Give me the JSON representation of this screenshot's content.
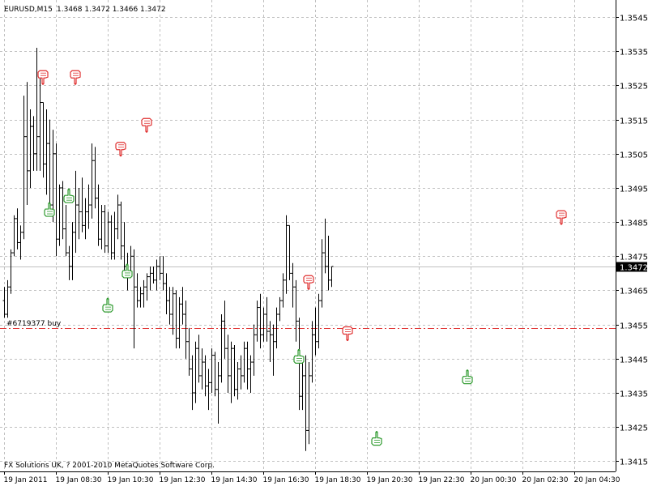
{
  "window": {
    "symbol_timeframe": "EURUSD,M15",
    "ohlc": "1.3468 1.3472 1.3466 1.3472",
    "copyright": "FX Solutions UK, ? 2001-2010 MetaQuotes Software Corp.",
    "order_label": "#6719377 buy"
  },
  "colors": {
    "background": "#ffffff",
    "grid": "#c0c0c0",
    "bars": "#000000",
    "up_arrow": "#2e9a2e",
    "down_arrow": "#e03030",
    "order_line": "#e03030",
    "current_price_line": "#c0c0c0",
    "price_tag_bg": "#000000",
    "price_tag_text": "#ffffff"
  },
  "chart_data": {
    "type": "ohlc",
    "timeframe": "M15",
    "ylim": [
      1.3412,
      1.355
    ],
    "y_ticks": [
      "1.3545",
      "1.3535",
      "1.3525",
      "1.3515",
      "1.3505",
      "1.3495",
      "1.3485",
      "1.3475",
      "1.3465",
      "1.3455",
      "1.3445",
      "1.3435",
      "1.3425",
      "1.3415"
    ],
    "x_ticks": [
      "19 Jan 2011",
      "19 Jan 08:30",
      "19 Jan 10:30",
      "19 Jan 12:30",
      "19 Jan 14:30",
      "19 Jan 16:30",
      "19 Jan 18:30",
      "19 Jan 20:30",
      "19 Jan 22:30",
      "20 Jan 00:30",
      "20 Jan 02:30",
      "20 Jan 04:30"
    ],
    "current_price": "1.3472",
    "order_line": {
      "label": "#6719377 buy",
      "price": 1.3454
    },
    "bars": [
      [
        1.3462,
        1.3466,
        1.3457,
        1.3458
      ],
      [
        1.3458,
        1.3468,
        1.3457,
        1.3466
      ],
      [
        1.3466,
        1.3477,
        1.3464,
        1.3476
      ],
      [
        1.3476,
        1.3487,
        1.3475,
        1.3486
      ],
      [
        1.3486,
        1.3489,
        1.3477,
        1.3479
      ],
      [
        1.3479,
        1.3484,
        1.3474,
        1.3482
      ],
      [
        1.3482,
        1.3522,
        1.348,
        1.351
      ],
      [
        1.351,
        1.3526,
        1.349,
        1.35
      ],
      [
        1.35,
        1.3518,
        1.3495,
        1.3513
      ],
      [
        1.3513,
        1.3516,
        1.35,
        1.3505
      ],
      [
        1.3505,
        1.3536,
        1.35,
        1.351
      ],
      [
        1.351,
        1.3527,
        1.35,
        1.352
      ],
      [
        1.352,
        1.352,
        1.3498,
        1.3502
      ],
      [
        1.3502,
        1.3518,
        1.3493,
        1.3508
      ],
      [
        1.3508,
        1.3515,
        1.3487,
        1.349
      ],
      [
        1.349,
        1.3512,
        1.3485,
        1.3505
      ],
      [
        1.3505,
        1.3508,
        1.3475,
        1.348
      ],
      [
        1.348,
        1.3496,
        1.3478,
        1.3495
      ],
      [
        1.3495,
        1.3497,
        1.348,
        1.3483
      ],
      [
        1.3483,
        1.349,
        1.3475,
        1.3476
      ],
      [
        1.3476,
        1.3478,
        1.3468,
        1.3472
      ],
      [
        1.3472,
        1.3485,
        1.3468,
        1.3482
      ],
      [
        1.3482,
        1.35,
        1.3476,
        1.349
      ],
      [
        1.349,
        1.3495,
        1.348,
        1.3488
      ],
      [
        1.3488,
        1.3498,
        1.3482,
        1.3484
      ],
      [
        1.3484,
        1.3492,
        1.348,
        1.3488
      ],
      [
        1.3488,
        1.3496,
        1.3483,
        1.349
      ],
      [
        1.349,
        1.3508,
        1.3486,
        1.3503
      ],
      [
        1.3503,
        1.3507,
        1.3489,
        1.3492
      ],
      [
        1.3492,
        1.3496,
        1.3478,
        1.348
      ],
      [
        1.348,
        1.349,
        1.3477,
        1.3488
      ],
      [
        1.3488,
        1.349,
        1.3476,
        1.3478
      ],
      [
        1.3478,
        1.3488,
        1.3476,
        1.3485
      ],
      [
        1.3485,
        1.3487,
        1.3474,
        1.3476
      ],
      [
        1.3476,
        1.3488,
        1.3474,
        1.3483
      ],
      [
        1.3483,
        1.3493,
        1.348,
        1.349
      ],
      [
        1.349,
        1.3491,
        1.3474,
        1.3478
      ],
      [
        1.3478,
        1.3485,
        1.347,
        1.3472
      ],
      [
        1.3472,
        1.3476,
        1.3465,
        1.347
      ],
      [
        1.347,
        1.3478,
        1.3469,
        1.3475
      ],
      [
        1.3475,
        1.3477,
        1.3448,
        1.3466
      ],
      [
        1.3466,
        1.347,
        1.346,
        1.3462
      ],
      [
        1.3462,
        1.3466,
        1.346,
        1.3464
      ],
      [
        1.3464,
        1.3468,
        1.346,
        1.3466
      ],
      [
        1.3466,
        1.347,
        1.3462,
        1.3469
      ],
      [
        1.3469,
        1.3472,
        1.3465,
        1.347
      ],
      [
        1.347,
        1.3472,
        1.3467,
        1.3468
      ],
      [
        1.3468,
        1.3474,
        1.3465,
        1.3472
      ],
      [
        1.3472,
        1.3475,
        1.3468,
        1.347
      ],
      [
        1.347,
        1.3475,
        1.3465,
        1.3467
      ],
      [
        1.3467,
        1.347,
        1.3458,
        1.3462
      ],
      [
        1.3462,
        1.3466,
        1.3455,
        1.3458
      ],
      [
        1.3458,
        1.3466,
        1.3452,
        1.3464
      ],
      [
        1.3464,
        1.3465,
        1.3448,
        1.3451
      ],
      [
        1.3451,
        1.3463,
        1.3448,
        1.3461
      ],
      [
        1.3461,
        1.3466,
        1.3455,
        1.3458
      ],
      [
        1.3458,
        1.3462,
        1.3445,
        1.345
      ],
      [
        1.345,
        1.3454,
        1.344,
        1.3442
      ],
      [
        1.3442,
        1.3446,
        1.343,
        1.3435
      ],
      [
        1.3435,
        1.345,
        1.3432,
        1.3448
      ],
      [
        1.3448,
        1.3452,
        1.3438,
        1.344
      ],
      [
        1.344,
        1.3448,
        1.3436,
        1.3444
      ],
      [
        1.3444,
        1.3446,
        1.3434,
        1.3437
      ],
      [
        1.3437,
        1.3442,
        1.343,
        1.3438
      ],
      [
        1.3438,
        1.3448,
        1.3435,
        1.3446
      ],
      [
        1.3446,
        1.3447,
        1.3434,
        1.3436
      ],
      [
        1.3436,
        1.3444,
        1.3426,
        1.344
      ],
      [
        1.344,
        1.3458,
        1.3438,
        1.3456
      ],
      [
        1.3456,
        1.3462,
        1.3445,
        1.3448
      ],
      [
        1.3448,
        1.3452,
        1.3435,
        1.344
      ],
      [
        1.344,
        1.345,
        1.3432,
        1.3448
      ],
      [
        1.3448,
        1.3449,
        1.3434,
        1.3436
      ],
      [
        1.3436,
        1.3444,
        1.3433,
        1.3442
      ],
      [
        1.3442,
        1.3446,
        1.3436,
        1.344
      ],
      [
        1.344,
        1.345,
        1.3438,
        1.3448
      ],
      [
        1.3448,
        1.345,
        1.3436,
        1.3442
      ],
      [
        1.3442,
        1.3446,
        1.3435,
        1.3444
      ],
      [
        1.3444,
        1.3455,
        1.344,
        1.3452
      ],
      [
        1.3452,
        1.3462,
        1.345,
        1.346
      ],
      [
        1.346,
        1.3464,
        1.3448,
        1.3452
      ],
      [
        1.3452,
        1.346,
        1.345,
        1.3458
      ],
      [
        1.3458,
        1.3463,
        1.345,
        1.3453
      ],
      [
        1.3453,
        1.3456,
        1.3444,
        1.3452
      ],
      [
        1.3452,
        1.3455,
        1.344,
        1.345
      ],
      [
        1.345,
        1.346,
        1.3448,
        1.3458
      ],
      [
        1.3458,
        1.3463,
        1.3456,
        1.3462
      ],
      [
        1.3462,
        1.347,
        1.346,
        1.3468
      ],
      [
        1.3468,
        1.3487,
        1.3464,
        1.3484
      ],
      [
        1.3484,
        1.3484,
        1.3468,
        1.347
      ],
      [
        1.347,
        1.3473,
        1.346,
        1.3466
      ],
      [
        1.3466,
        1.3468,
        1.345,
        1.3456
      ],
      [
        1.3456,
        1.3457,
        1.343,
        1.3434
      ],
      [
        1.3434,
        1.3444,
        1.343,
        1.344
      ],
      [
        1.344,
        1.3446,
        1.3418,
        1.3424
      ],
      [
        1.3424,
        1.3444,
        1.342,
        1.344
      ],
      [
        1.344,
        1.3456,
        1.3438,
        1.3452
      ],
      [
        1.3452,
        1.346,
        1.3446,
        1.345
      ],
      [
        1.345,
        1.3464,
        1.3448,
        1.3462
      ],
      [
        1.3462,
        1.348,
        1.346,
        1.3476
      ],
      [
        1.3476,
        1.3486,
        1.347,
        1.3472
      ],
      [
        1.3472,
        1.3481,
        1.3465,
        1.3468
      ],
      [
        1.3468,
        1.3472,
        1.3466,
        1.3472
      ]
    ],
    "up_arrows": [
      {
        "bar": 14,
        "price": 1.349
      },
      {
        "bar": 20,
        "price": 1.3494
      },
      {
        "bar": 32,
        "price": 1.3462
      },
      {
        "bar": 38,
        "price": 1.3472
      },
      {
        "bar": 91,
        "price": 1.3447
      },
      {
        "bar": 115,
        "price": 1.3423
      },
      {
        "bar": 143,
        "price": 1.3441
      }
    ],
    "down_arrows": [
      {
        "bar": 12,
        "price": 1.3526
      },
      {
        "bar": 22,
        "price": 1.3526
      },
      {
        "bar": 36,
        "price": 1.3505
      },
      {
        "bar": 44,
        "price": 1.3512
      },
      {
        "bar": 94,
        "price": 1.3466
      },
      {
        "bar": 106,
        "price": 1.3451
      },
      {
        "bar": 172,
        "price": 1.3485
      }
    ]
  }
}
